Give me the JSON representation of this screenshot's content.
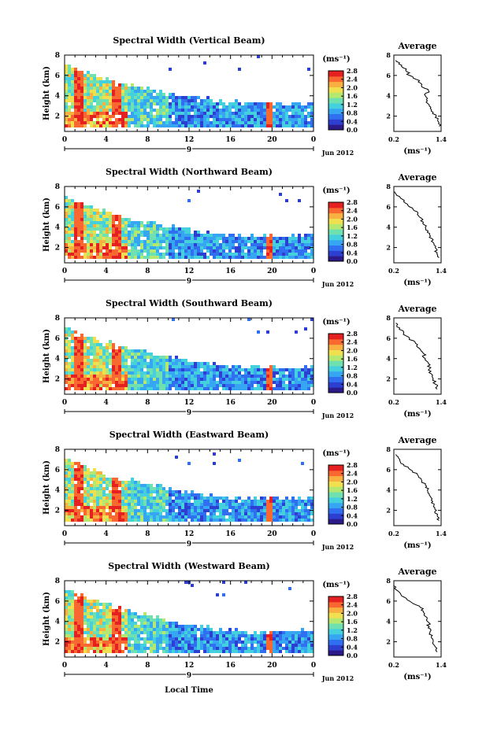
{
  "figure": {
    "bottom_xlabel": "Local Time",
    "colors": {
      "colormap": [
        "#2b1a88",
        "#2d3fd0",
        "#2f6ff0",
        "#37a6f2",
        "#45d0dd",
        "#6fe0b0",
        "#b4e870",
        "#f0e050",
        "#f8b040",
        "#f86830",
        "#e52020"
      ],
      "axis": "#000000",
      "profile_line": "#000000"
    }
  },
  "chart_data": [
    {
      "type": "heatmap",
      "title": "Spectral Width (Vertical Beam)",
      "ylabel": "Height (km)",
      "ylim": [
        0.5,
        8
      ],
      "yticks": [
        "2",
        "4",
        "6",
        "8"
      ],
      "xlim": [
        0,
        24
      ],
      "xticks": [
        "0",
        "4",
        "8",
        "12",
        "16",
        "20",
        "0"
      ],
      "date_day": "9",
      "date_month_year": "Jun 2012",
      "colorbar": {
        "unit": "(ms⁻¹)",
        "range": [
          0,
          2.8
        ],
        "ticks": [
          "2.8",
          "2.4",
          "2.0",
          "1.6",
          "1.2",
          "0.8",
          "0.4",
          "0.0"
        ]
      },
      "echo_top_km": [
        7.0,
        6.3,
        5.6,
        5.0,
        4.6,
        4.2,
        3.9,
        3.6,
        3.4,
        3.3,
        3.3,
        3.3,
        3.4
      ],
      "avg_profile": {
        "title": "Average",
        "xlabel": "(ms⁻¹)",
        "xlim": [
          0.2,
          1.4
        ],
        "xticks": [
          "0.2",
          "1.4"
        ],
        "yticks": [
          "2",
          "4",
          "6",
          "8"
        ],
        "height_km": [
          1.0,
          1.5,
          2.0,
          2.5,
          3.0,
          3.5,
          4.0,
          4.5,
          5.0,
          5.5,
          6.0,
          6.5,
          7.0,
          7.5
        ],
        "width_ms": [
          1.35,
          1.32,
          1.28,
          1.15,
          1.1,
          1.05,
          1.0,
          1.08,
          0.9,
          0.85,
          0.6,
          0.5,
          0.4,
          0.25
        ]
      }
    },
    {
      "type": "heatmap",
      "title": "Spectral Width (Northward Beam)",
      "ylabel": "Height (km)",
      "ylim": [
        0.5,
        8
      ],
      "yticks": [
        "2",
        "4",
        "6",
        "8"
      ],
      "xlim": [
        0,
        24
      ],
      "xticks": [
        "0",
        "4",
        "8",
        "12",
        "16",
        "20",
        "0"
      ],
      "date_day": "9",
      "date_month_year": "Jun 2012",
      "colorbar": {
        "unit": "(ms⁻¹)",
        "range": [
          0,
          2.8
        ],
        "ticks": [
          "2.8",
          "2.4",
          "2.0",
          "1.6",
          "1.2",
          "0.8",
          "0.4",
          "0.0"
        ]
      },
      "echo_top_km": [
        7.0,
        6.1,
        5.5,
        4.9,
        4.4,
        4.0,
        3.7,
        3.4,
        3.3,
        3.2,
        3.2,
        3.2,
        3.3
      ],
      "avg_profile": {
        "title": "Average",
        "xlabel": "(ms⁻¹)",
        "xlim": [
          0.2,
          1.4
        ],
        "xticks": [
          "0.2",
          "1.4"
        ],
        "yticks": [
          "2",
          "4",
          "6",
          "8"
        ],
        "height_km": [
          1.0,
          1.5,
          2.0,
          2.5,
          3.0,
          3.5,
          4.0,
          4.5,
          5.0,
          5.5,
          6.0,
          6.5,
          7.0,
          7.5
        ],
        "width_ms": [
          1.35,
          1.3,
          1.25,
          1.2,
          1.1,
          1.05,
          1.0,
          0.95,
          0.85,
          0.8,
          0.6,
          0.45,
          0.35,
          0.22
        ]
      }
    },
    {
      "type": "heatmap",
      "title": "Spectral Width (Southward Beam)",
      "ylabel": "Height (km)",
      "ylim": [
        0.5,
        8
      ],
      "yticks": [
        "2",
        "4",
        "6",
        "8"
      ],
      "xlim": [
        0,
        24
      ],
      "xticks": [
        "0",
        "4",
        "8",
        "12",
        "16",
        "20",
        "0"
      ],
      "date_day": "9",
      "date_month_year": "Jun 2012",
      "colorbar": {
        "unit": "(ms⁻¹)",
        "range": [
          0,
          2.8
        ],
        "ticks": [
          "2.8",
          "2.4",
          "2.0",
          "1.6",
          "1.2",
          "0.8",
          "0.4",
          "0.0"
        ]
      },
      "echo_top_km": [
        7.1,
        6.2,
        5.6,
        5.1,
        4.6,
        4.2,
        3.8,
        3.5,
        3.3,
        3.2,
        3.1,
        3.1,
        3.2
      ],
      "avg_profile": {
        "title": "Average",
        "xlabel": "(ms⁻¹)",
        "xlim": [
          0.2,
          1.4
        ],
        "xticks": [
          "0.2",
          "1.4"
        ],
        "yticks": [
          "2",
          "4",
          "6",
          "8"
        ],
        "height_km": [
          1.0,
          1.5,
          2.0,
          2.5,
          3.0,
          3.5,
          4.0,
          4.5,
          5.0,
          5.5,
          6.0,
          6.5,
          7.0,
          7.5
        ],
        "width_ms": [
          1.3,
          1.25,
          1.2,
          1.15,
          1.1,
          1.08,
          1.0,
          0.95,
          0.85,
          0.75,
          0.6,
          0.45,
          0.35,
          0.25
        ]
      }
    },
    {
      "type": "heatmap",
      "title": "Spectral Width (Eastward Beam)",
      "ylabel": "Height (km)",
      "ylim": [
        0.5,
        8
      ],
      "yticks": [
        "2",
        "4",
        "6",
        "8"
      ],
      "xlim": [
        0,
        24
      ],
      "xticks": [
        "0",
        "4",
        "8",
        "12",
        "16",
        "20",
        "0"
      ],
      "date_day": "9",
      "date_month_year": "Jun 2012",
      "colorbar": {
        "unit": "(ms⁻¹)",
        "range": [
          0,
          2.8
        ],
        "ticks": [
          "2.8",
          "2.4",
          "2.0",
          "1.6",
          "1.2",
          "0.8",
          "0.4",
          "0.0"
        ]
      },
      "echo_top_km": [
        7.0,
        6.2,
        5.5,
        5.0,
        4.5,
        4.1,
        3.8,
        3.5,
        3.3,
        3.2,
        3.2,
        3.2,
        3.3
      ],
      "avg_profile": {
        "title": "Average",
        "xlabel": "(ms⁻¹)",
        "xlim": [
          0.2,
          1.4
        ],
        "xticks": [
          "0.2",
          "1.4"
        ],
        "yticks": [
          "2",
          "4",
          "6",
          "8"
        ],
        "height_km": [
          1.0,
          1.5,
          2.0,
          2.5,
          3.0,
          3.5,
          4.0,
          4.5,
          5.0,
          5.5,
          6.0,
          6.5,
          7.0,
          7.5
        ],
        "width_ms": [
          1.35,
          1.3,
          1.28,
          1.22,
          1.15,
          1.1,
          1.05,
          1.0,
          0.9,
          0.8,
          0.62,
          0.45,
          0.35,
          0.25
        ]
      }
    },
    {
      "type": "heatmap",
      "title": "Spectral Width (Westward Beam)",
      "ylabel": "Height (km)",
      "ylim": [
        0.5,
        8
      ],
      "yticks": [
        "2",
        "4",
        "6",
        "8"
      ],
      "xlim": [
        0,
        24
      ],
      "xticks": [
        "0",
        "4",
        "8",
        "12",
        "16",
        "20",
        "0"
      ],
      "date_day": "9",
      "date_month_year": "Jun 2012",
      "colorbar": {
        "unit": "(ms⁻¹)",
        "range": [
          0,
          2.8
        ],
        "ticks": [
          "2.8",
          "2.4",
          "2.0",
          "1.6",
          "1.2",
          "0.8",
          "0.4",
          "0.0"
        ]
      },
      "echo_top_km": [
        7.1,
        6.3,
        5.7,
        5.0,
        4.5,
        4.0,
        3.6,
        3.3,
        3.1,
        3.0,
        3.0,
        3.1,
        3.2
      ],
      "avg_profile": {
        "title": "Average",
        "xlabel": "(ms⁻¹)",
        "xlim": [
          0.2,
          1.4
        ],
        "xticks": [
          "0.2",
          "1.4"
        ],
        "yticks": [
          "2",
          "4",
          "6",
          "8"
        ],
        "height_km": [
          1.0,
          1.5,
          2.0,
          2.5,
          3.0,
          3.5,
          4.0,
          4.5,
          5.0,
          5.5,
          6.0,
          6.5,
          7.0,
          7.5
        ],
        "width_ms": [
          1.3,
          1.25,
          1.2,
          1.15,
          1.12,
          1.1,
          1.05,
          1.0,
          0.95,
          0.85,
          0.6,
          0.4,
          0.3,
          0.2
        ]
      }
    }
  ]
}
